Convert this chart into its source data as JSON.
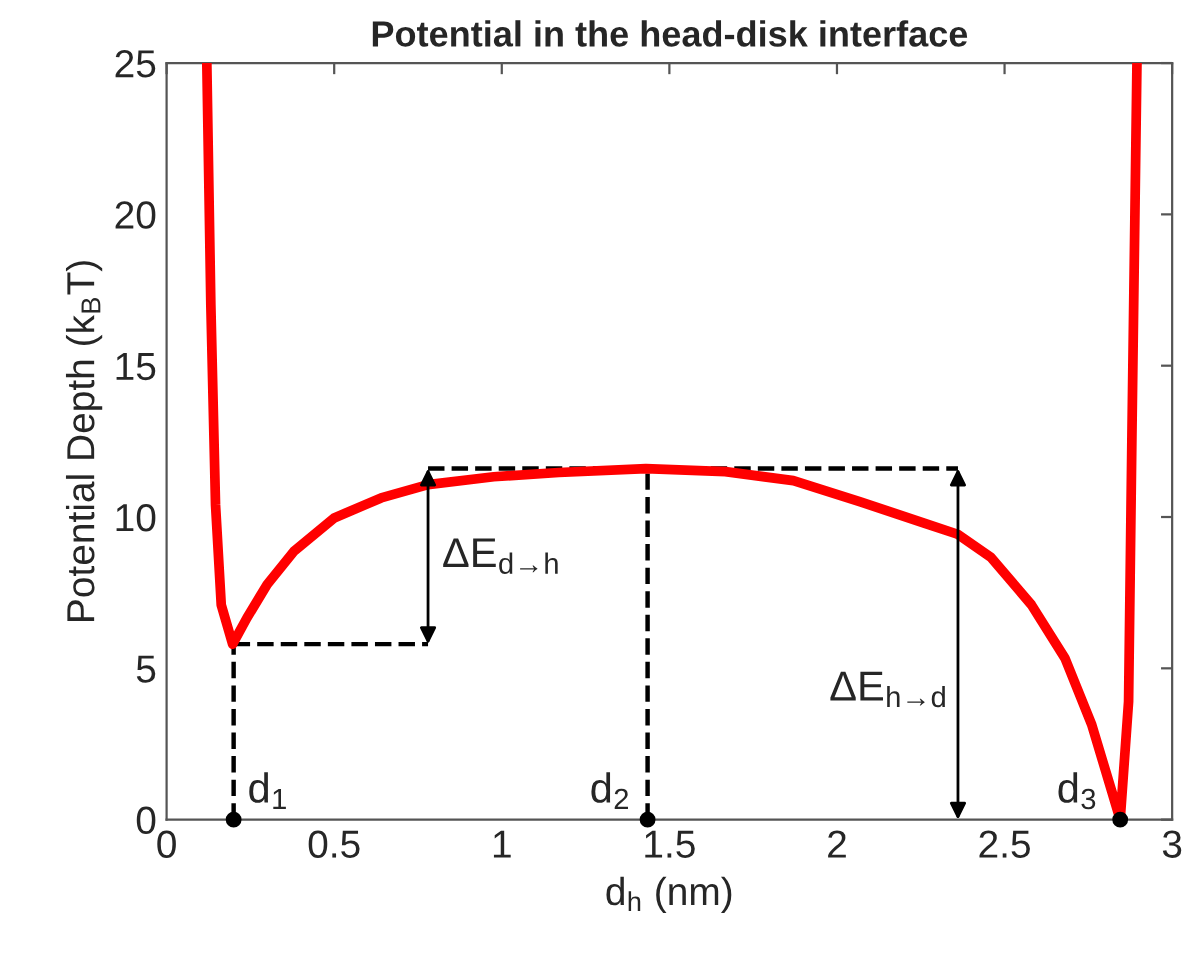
{
  "chart_data": {
    "type": "line",
    "title": "Potential in the head-disk interface",
    "xlabel": "d$_{h}$ (nm)",
    "ylabel": "Potential Depth (k$_{B}$T)",
    "xlim": [
      0,
      3
    ],
    "xticks": [
      0,
      0.5,
      1,
      1.5,
      2,
      2.5,
      3
    ],
    "ylim": [
      0,
      25
    ],
    "yticks": [
      0,
      5,
      10,
      15,
      20,
      25
    ],
    "grid": false,
    "legend": false,
    "series": [
      {
        "color": "#ff0000",
        "marker": "none",
        "line_style": "solid",
        "x": [
          0.12,
          0.132,
          0.146,
          0.163,
          0.197,
          0.24,
          0.3,
          0.38,
          0.5,
          0.64,
          0.78,
          0.976,
          1.17,
          1.43,
          1.667,
          1.87,
          2.07,
          2.26,
          2.36,
          2.46,
          2.58,
          2.68,
          2.76,
          2.82,
          2.845,
          2.87,
          2.88,
          2.895
        ],
        "values": [
          25,
          17.0,
          10.4,
          7.1,
          5.8,
          6.67,
          7.77,
          8.87,
          9.97,
          10.63,
          11.07,
          11.33,
          11.47,
          11.6,
          11.5,
          11.2,
          10.5,
          9.8,
          9.43,
          8.66,
          7.1,
          5.34,
          3.14,
          0.93,
          0,
          3.9,
          12.7,
          25
        ]
      },
      {
        "type": "scatter",
        "color": "#000000",
        "marker": "circle",
        "x": [
          0.2,
          1.435,
          2.845
        ],
        "values": [
          0,
          0,
          0
        ]
      }
    ],
    "annotations": [
      {
        "text": "d$_{1}$",
        "x": 0.2,
        "y": 0
      },
      {
        "text": "d$_{2}$",
        "x": 1.435,
        "y": 0
      },
      {
        "text": "d$_{3}$",
        "x": 2.845,
        "y": 0
      },
      {
        "text": "ΔE$_{d→h}$",
        "x": 0.78,
        "y": 11.07
      },
      "ΔE$_{h→d}$"
    ]
  }
}
